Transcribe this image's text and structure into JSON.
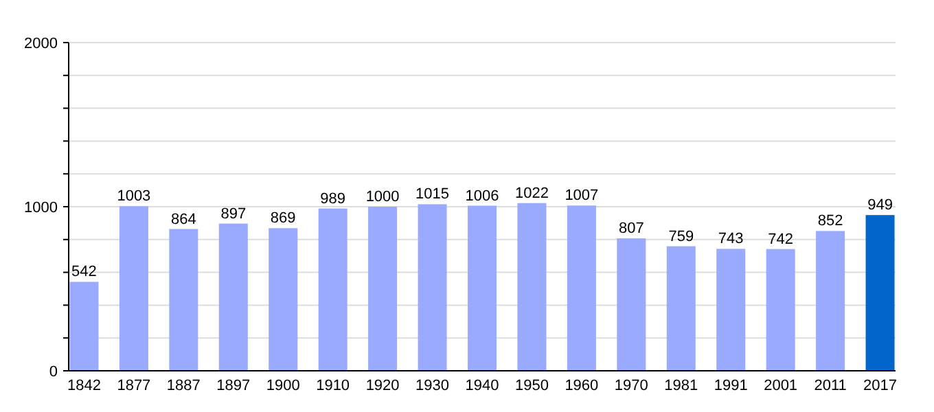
{
  "chart_data": {
    "type": "bar",
    "categories": [
      "1842",
      "1877",
      "1887",
      "1897",
      "1900",
      "1910",
      "1920",
      "1930",
      "1940",
      "1950",
      "1960",
      "1970",
      "1981",
      "1991",
      "2001",
      "2011",
      "2017"
    ],
    "values": [
      542,
      1003,
      864,
      897,
      869,
      989,
      1000,
      1015,
      1006,
      1022,
      1007,
      807,
      759,
      743,
      742,
      852,
      949
    ],
    "colors": [
      "#99aaff",
      "#99aaff",
      "#99aaff",
      "#99aaff",
      "#99aaff",
      "#99aaff",
      "#99aaff",
      "#99aaff",
      "#99aaff",
      "#99aaff",
      "#99aaff",
      "#99aaff",
      "#99aaff",
      "#99aaff",
      "#99aaff",
      "#99aaff",
      "#0066cc"
    ],
    "ylim": [
      0,
      2000
    ],
    "yticks": [
      0,
      {
        "value": 200,
        "label": null
      },
      {
        "value": 400,
        "label": null
      },
      {
        "value": 600,
        "label": null
      },
      {
        "value": 800,
        "label": null
      },
      1000,
      {
        "value": 1200,
        "label": null
      },
      {
        "value": 1400,
        "label": null
      },
      {
        "value": 1600,
        "label": null
      },
      {
        "value": 1800,
        "label": null
      },
      2000
    ],
    "grid": true,
    "data_labels": true
  }
}
